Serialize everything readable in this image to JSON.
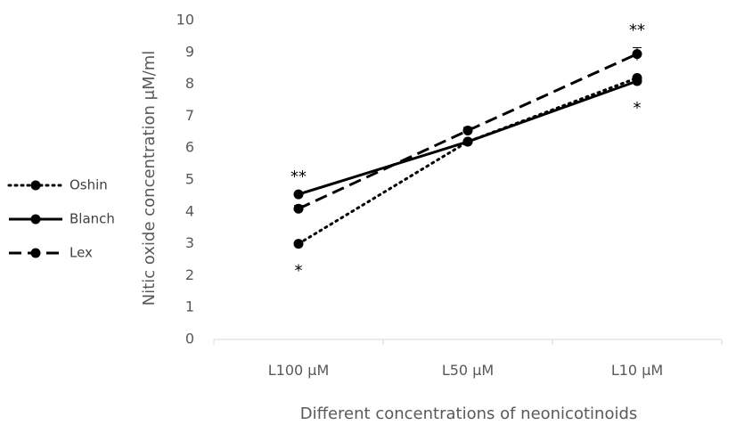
{
  "chart_data": {
    "type": "line",
    "title": "",
    "xlabel": "Different concentrations of neonicotinoids",
    "ylabel": "Nitic oxide concentration μM/ml",
    "categories": [
      "L100 μM",
      "L50 μM",
      "L10 μM"
    ],
    "ylim": [
      0,
      10
    ],
    "yticks": [
      "0",
      "1",
      "2",
      "3",
      "4",
      "5",
      "6",
      "7",
      "8",
      "9",
      "10"
    ],
    "grid": false,
    "legend_position": "left",
    "series": [
      {
        "name": "Oshin",
        "values": [
          3.0,
          6.2,
          8.2
        ],
        "line_style": "dotted",
        "color": "#000000"
      },
      {
        "name": "Blanch",
        "values": [
          4.55,
          6.2,
          8.1
        ],
        "line_style": "solid",
        "color": "#000000"
      },
      {
        "name": "Lex",
        "values": [
          4.1,
          6.55,
          8.95
        ],
        "line_style": "dashed",
        "color": "#000000",
        "error": [
          0.1,
          0.1,
          0.2
        ]
      }
    ],
    "annotations": [
      {
        "text": "**",
        "category": "L100 μM",
        "position": "above"
      },
      {
        "text": "*",
        "category": "L100 μM",
        "position": "below"
      },
      {
        "text": "**",
        "category": "L10 μM",
        "position": "above"
      },
      {
        "text": "*",
        "category": "L10 μM",
        "position": "below"
      }
    ]
  }
}
